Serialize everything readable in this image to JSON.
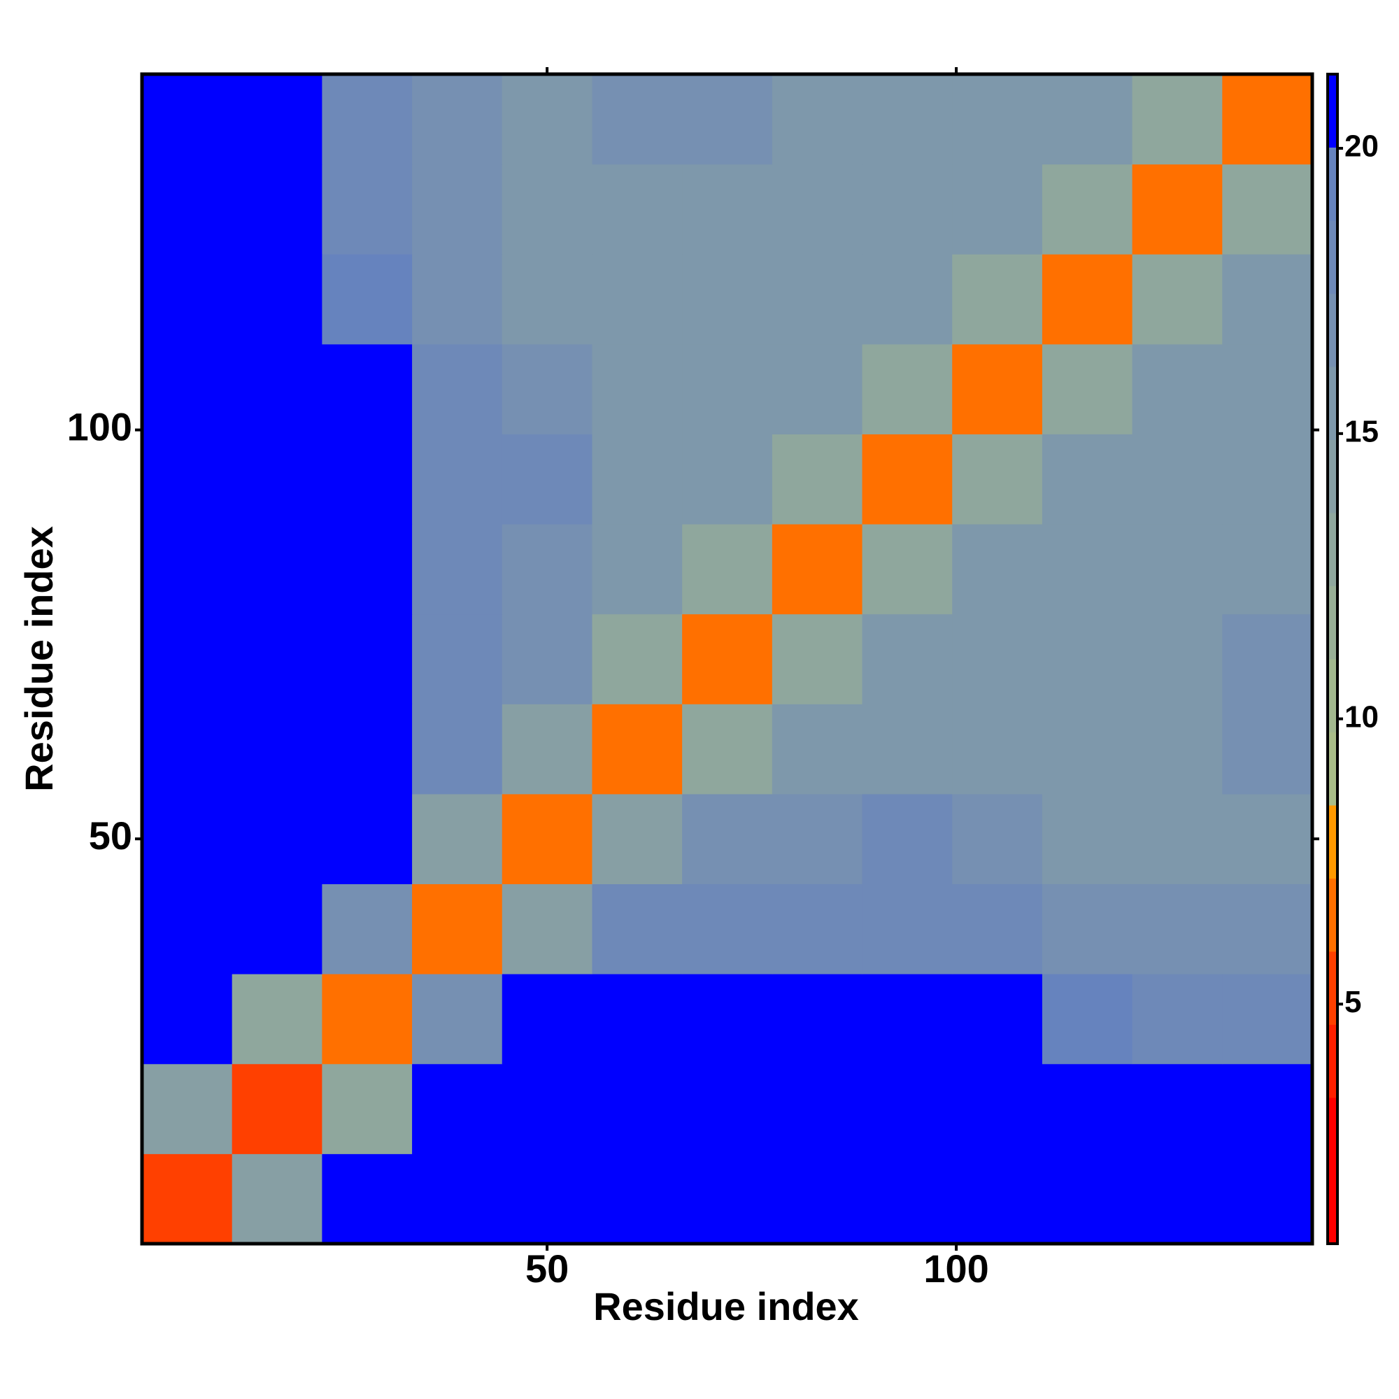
{
  "chart_data": {
    "type": "heatmap",
    "xlabel": "Residue index",
    "ylabel": "Residue index",
    "x_bins": [
      0.5,
      11.5,
      22.5,
      33.5,
      44.5,
      55.5,
      66.5,
      77.5,
      88.5,
      99.5,
      110.5,
      121.5,
      132.5,
      143.5
    ],
    "y_bins": [
      0.5,
      11.5,
      22.5,
      33.5,
      44.5,
      55.5,
      66.5,
      77.5,
      88.5,
      99.5,
      110.5,
      121.5,
      132.5,
      143.5
    ],
    "values": [
      [
        5,
        14,
        21,
        21,
        21,
        21,
        21,
        21,
        21,
        21,
        21,
        21,
        21
      ],
      [
        14,
        5,
        13,
        21,
        21,
        21,
        21,
        21,
        21,
        21,
        21,
        21,
        21
      ],
      [
        21,
        13,
        6,
        17,
        21,
        21,
        21,
        21,
        21,
        21,
        19,
        18,
        18
      ],
      [
        21,
        21,
        17,
        6,
        14,
        18,
        18,
        18,
        18,
        18,
        17,
        17,
        17
      ],
      [
        21,
        21,
        21,
        14,
        6,
        14,
        17,
        17,
        18,
        17,
        16,
        16,
        16
      ],
      [
        21,
        21,
        21,
        18,
        14,
        6,
        13,
        15,
        16,
        15,
        16,
        16,
        17
      ],
      [
        21,
        21,
        21,
        18,
        17,
        13,
        6,
        13,
        15,
        16,
        15,
        16,
        17
      ],
      [
        21,
        21,
        21,
        18,
        17,
        15,
        13,
        6,
        13,
        15,
        16,
        15,
        16
      ],
      [
        21,
        21,
        21,
        18,
        18,
        16,
        15,
        13,
        6,
        13,
        15,
        16,
        15
      ],
      [
        21,
        21,
        21,
        18,
        17,
        15,
        16,
        15,
        13,
        6,
        13,
        15,
        16
      ],
      [
        21,
        21,
        19,
        17,
        16,
        16,
        15,
        16,
        15,
        13,
        6,
        13,
        15
      ],
      [
        21,
        21,
        18,
        17,
        16,
        16,
        16,
        15,
        16,
        15,
        13,
        6,
        13
      ],
      [
        21,
        21,
        18,
        17,
        16,
        17,
        17,
        16,
        15,
        16,
        15,
        13,
        6
      ]
    ],
    "xlim": [
      0.5,
      143.5
    ],
    "ylim": [
      0.5,
      143.5
    ],
    "xticks": [
      50,
      100
    ],
    "yticks": [
      50,
      100
    ],
    "clim": [
      0.8,
      21.3
    ],
    "cticks": [
      5,
      10,
      15,
      20
    ],
    "colors": [
      "#ff0000",
      "#ff0000",
      "#ff2000",
      "#ff4000",
      "#ff7000",
      "#ff9900",
      "#a9bd88",
      "#a2b88e",
      "#98af96",
      "#8fa79d",
      "#879fa4",
      "#7e98ab",
      "#7690b2",
      "#6e89b8",
      "#6683be",
      "#0000ff"
    ]
  }
}
